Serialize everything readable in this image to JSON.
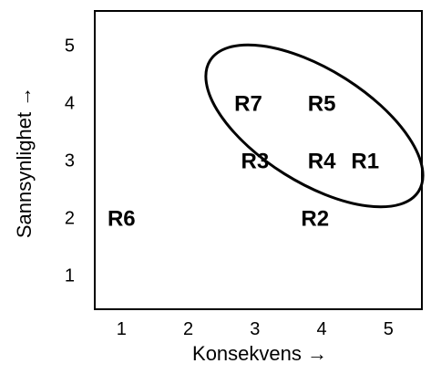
{
  "chart_data": {
    "type": "scatter",
    "xlabel": "Konsekvens →",
    "ylabel": "Sannsynlighet →",
    "x_ticks": [
      "1",
      "2",
      "3",
      "4",
      "5"
    ],
    "y_ticks": [
      "1",
      "2",
      "3",
      "4",
      "5"
    ],
    "xlim": [
      0.6,
      5.5
    ],
    "ylim": [
      0.4,
      5.6
    ],
    "grid": false,
    "points": [
      {
        "label": "R7",
        "x": 2.9,
        "y": 4
      },
      {
        "label": "R5",
        "x": 4.0,
        "y": 4
      },
      {
        "label": "R3",
        "x": 3.0,
        "y": 3
      },
      {
        "label": "R4",
        "x": 4.0,
        "y": 3
      },
      {
        "label": "R1",
        "x": 4.65,
        "y": 3
      },
      {
        "label": "R6",
        "x": 1.0,
        "y": 2
      },
      {
        "label": "R2",
        "x": 3.9,
        "y": 2
      }
    ],
    "highlight_ellipse": {
      "center_x": 4.3,
      "center_y": 3.55,
      "description": "encircles high-risk items R7, R5, R3, R4, R1"
    }
  },
  "colors": {
    "axes": "#000000",
    "text": "#000000",
    "background": "#ffffff"
  }
}
